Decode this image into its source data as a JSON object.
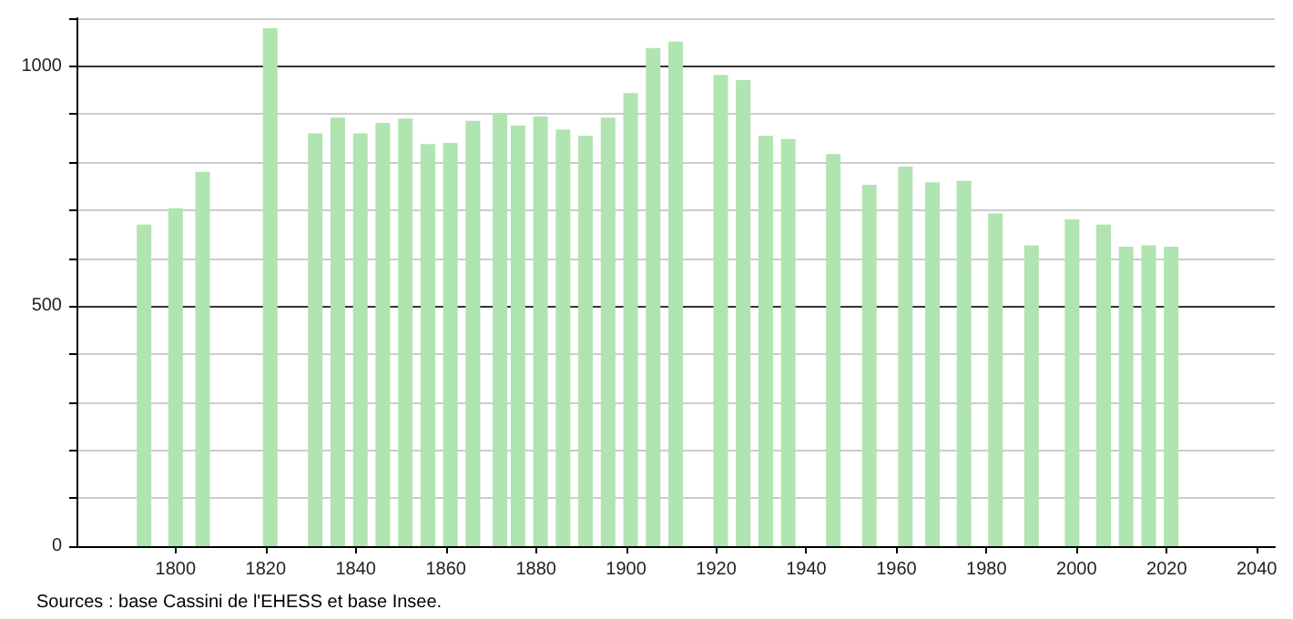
{
  "chart_data": {
    "type": "bar",
    "annotations": [
      "Sources : base Cassini de l'EHESS et base Insee."
    ],
    "x": [
      1793,
      1800,
      1806,
      1821,
      1831,
      1836,
      1841,
      1846,
      1851,
      1856,
      1861,
      1866,
      1872,
      1876,
      1881,
      1886,
      1891,
      1896,
      1901,
      1906,
      1911,
      1921,
      1926,
      1931,
      1936,
      1946,
      1954,
      1962,
      1968,
      1975,
      1982,
      1990,
      1999,
      2006,
      2011,
      2016,
      2021
    ],
    "values": [
      670,
      704,
      780,
      1079,
      860,
      893,
      860,
      882,
      891,
      838,
      840,
      886,
      901,
      876,
      895,
      868,
      855,
      893,
      944,
      1038,
      1051,
      982,
      971,
      855,
      848,
      817,
      753,
      791,
      758,
      761,
      693,
      627,
      681,
      670,
      624,
      627,
      624
    ],
    "color": "#b0e4b0",
    "xlim": [
      1778,
      2044
    ],
    "xticks": [
      1800,
      1820,
      1840,
      1860,
      1880,
      1900,
      1920,
      1940,
      1960,
      1980,
      2000,
      2020,
      2040
    ],
    "ylim": [
      0,
      1100
    ],
    "yticks": [
      0,
      {
        "value": 100,
        "label": null
      },
      {
        "value": 200,
        "label": null
      },
      {
        "value": 300,
        "label": null
      },
      {
        "value": 400,
        "label": null
      },
      500,
      {
        "value": 600,
        "label": null
      },
      {
        "value": 700,
        "label": null
      },
      {
        "value": 800,
        "label": null
      },
      {
        "value": 900,
        "label": null
      },
      1000,
      {
        "value": 1100,
        "label": null
      }
    ],
    "grid": "y"
  }
}
